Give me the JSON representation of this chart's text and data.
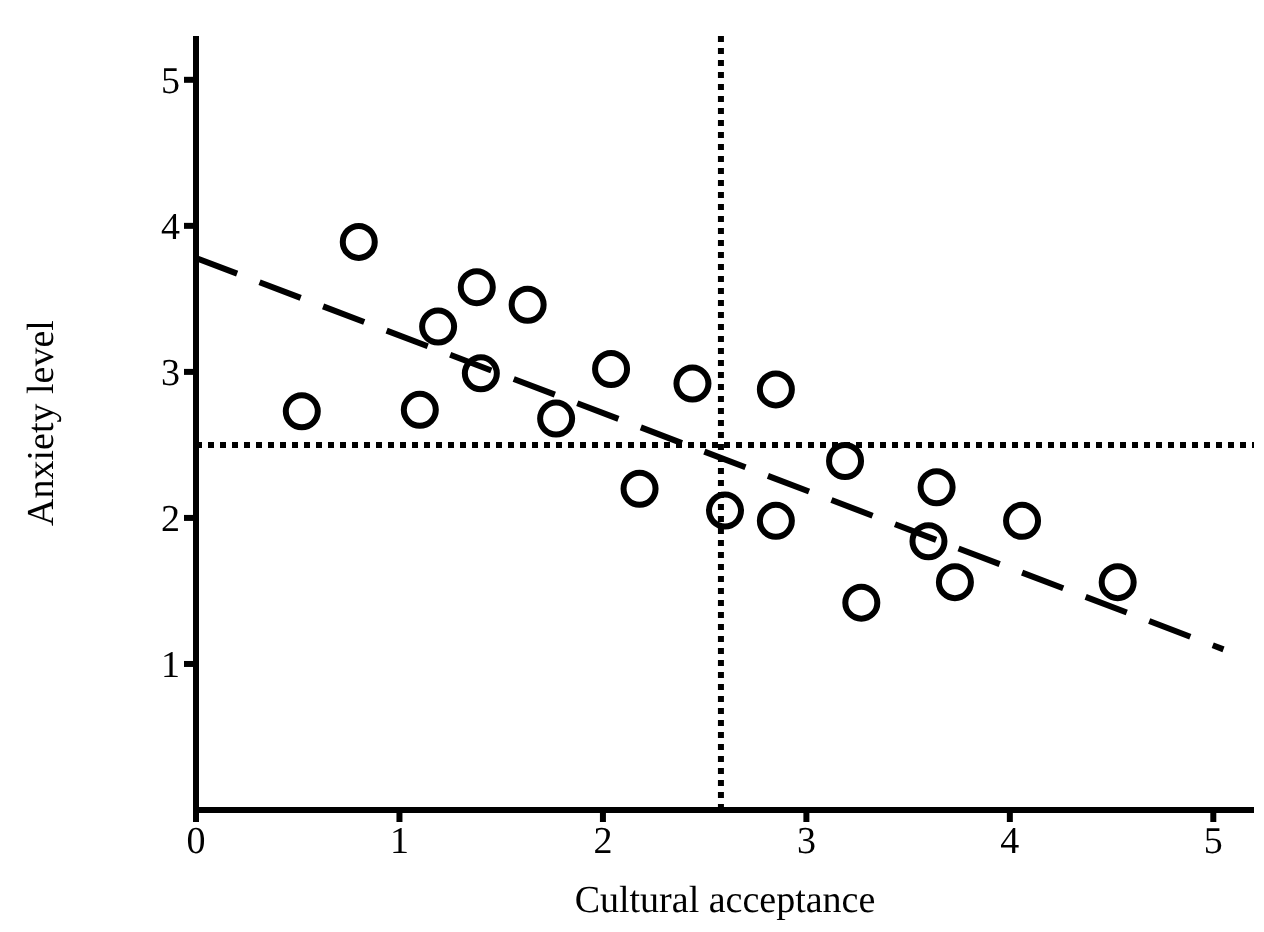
{
  "chart_data": {
    "type": "scatter",
    "xlabel": "Cultural acceptance",
    "ylabel": "Anxiety level",
    "xlim": [
      0,
      5.2
    ],
    "ylim": [
      0,
      5.3
    ],
    "xticks": [
      0,
      1,
      2,
      3,
      4,
      5
    ],
    "yticks": [
      1,
      2,
      3,
      4,
      5
    ],
    "grid": false,
    "legend": false,
    "marker": "circle",
    "series": [
      {
        "color": "#000000",
        "x": [
          0.52,
          0.8,
          1.1,
          1.19,
          1.38,
          1.4,
          1.63,
          1.77,
          2.04,
          2.18,
          2.44,
          2.6,
          2.85,
          2.85,
          3.19,
          3.27,
          3.64,
          3.6,
          3.73,
          4.06,
          4.53
        ],
        "values": [
          2.73,
          3.89,
          2.74,
          3.31,
          3.58,
          2.99,
          3.46,
          2.68,
          3.02,
          2.2,
          2.92,
          2.05,
          2.88,
          1.98,
          2.39,
          1.42,
          2.21,
          1.84,
          1.56,
          1.98,
          1.56
        ]
      },
      {
        "type": "line",
        "color": "#000000",
        "line_style": "dashed",
        "marker": "none",
        "x": [
          0,
          5.05
        ],
        "values": [
          3.78,
          1.1
        ]
      }
    ],
    "ref_lines": [
      {
        "axis": "x",
        "value": 2.58,
        "line_style": "dotted",
        "color": "#000000"
      },
      {
        "axis": "y",
        "value": 2.5,
        "line_style": "dotted",
        "color": "#000000"
      }
    ]
  }
}
